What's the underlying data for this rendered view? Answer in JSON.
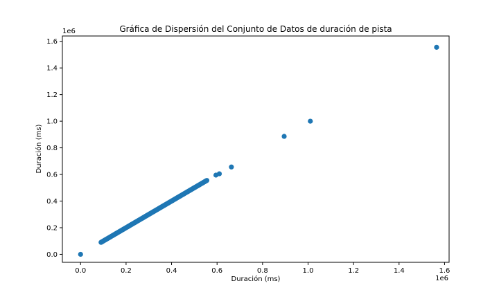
{
  "chart_data": {
    "type": "scatter",
    "title": "Gráfica de Dispersión del Conjunto de Datos de duración de pista",
    "xlabel": "Duración (ms)",
    "ylabel": "Duración (ms)",
    "x_offset_label": "1e6",
    "y_offset_label": "1e6",
    "xlim": [
      -0.08,
      1.62
    ],
    "ylim": [
      -0.06,
      1.64
    ],
    "x_ticks": [
      0.0,
      0.2,
      0.4,
      0.6,
      0.8,
      1.0,
      1.2,
      1.4,
      1.6
    ],
    "x_tick_labels": [
      "0.0",
      "0.2",
      "0.4",
      "0.6",
      "0.8",
      "1.0",
      "1.2",
      "1.4",
      "1.6"
    ],
    "y_ticks": [
      0.0,
      0.2,
      0.4,
      0.6,
      0.8,
      1.0,
      1.2,
      1.4,
      1.6
    ],
    "y_tick_labels": [
      "0.0",
      "0.2",
      "0.4",
      "0.6",
      "0.8",
      "1.0",
      "1.2",
      "1.4",
      "1.6"
    ],
    "grid": false,
    "marker_color": "#1f77b4",
    "series": [
      {
        "name": "duración de pista",
        "dense_range": {
          "x_min": 0.09,
          "x_max": 0.555,
          "step": 0.0025
        },
        "points": [
          {
            "x": 0.0,
            "y": 0.0
          },
          {
            "x": 0.595,
            "y": 0.595
          },
          {
            "x": 0.61,
            "y": 0.605
          },
          {
            "x": 0.663,
            "y": 0.656
          },
          {
            "x": 0.895,
            "y": 0.886
          },
          {
            "x": 1.01,
            "y": 1.0
          },
          {
            "x": 1.565,
            "y": 1.555
          }
        ]
      }
    ]
  }
}
